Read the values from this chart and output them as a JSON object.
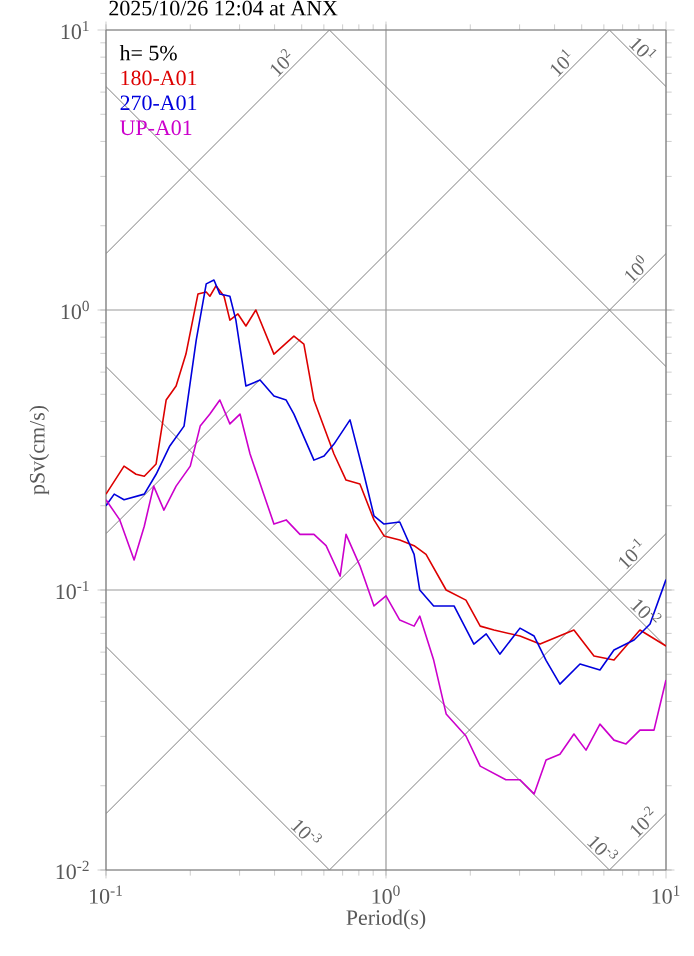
{
  "chart_data": {
    "type": "line",
    "title": "2025/10/26 12:04 at ANX",
    "xlabel": "Period(s)",
    "ylabel": "pSv(cm/s)",
    "log": "xy",
    "grid": true,
    "legend": "top left",
    "xlim": [
      0.1,
      10
    ],
    "ylim": [
      0.01,
      10
    ],
    "xticks": [
      {
        "value": 0.1,
        "label": "10$^{-1}$"
      },
      {
        "value": 1,
        "label": "10$^{0}$"
      },
      {
        "value": 10,
        "label": "10$^{1}$"
      }
    ],
    "yticks": [
      {
        "value": 0.01,
        "label": "10$^{-2}$"
      },
      {
        "value": 0.1,
        "label": "10$^{-1}$"
      },
      {
        "value": 1,
        "label": "10$^{0}$"
      },
      {
        "value": 10,
        "label": "10$^{1}$"
      }
    ],
    "annotations": [
      "h= 5%",
      {
        "text": "10$^{2}$",
        "x": 0.45,
        "y": 7.2
      },
      {
        "text": "10$^{1}$",
        "x": 4.5,
        "y": 7.2
      },
      {
        "text": "10$^{1}$",
        "x": 7.8,
        "y": 8.05
      },
      {
        "text": "10$^{0}$",
        "x": 8.3,
        "y": 1.32
      },
      {
        "text": "10$^{-1}$",
        "x": 8.0,
        "y": 0.127
      },
      {
        "text": "10$^{-2}$",
        "x": 8.0,
        "y": 0.0785
      },
      {
        "text": "10$^{-2}$",
        "x": 8.8,
        "y": 0.014
      },
      {
        "text": "10$^{-3}$",
        "x": 5.6,
        "y": 0.0112
      },
      {
        "text": "10$^{-3}$",
        "x": 0.49,
        "y": 0.0128
      }
    ],
    "series": [
      {
        "color": "#808080",
        "x": [
          0.1,
          0.628
        ],
        "values": [
          1.59,
          10
        ]
      },
      {
        "color": "#808080",
        "x": [
          0.1,
          6.28
        ],
        "values": [
          0.159,
          10
        ]
      },
      {
        "color": "#808080",
        "x": [
          0.1,
          10
        ],
        "values": [
          0.0159,
          1.59
        ]
      },
      {
        "color": "#808080",
        "x": [
          0.628,
          10
        ],
        "values": [
          0.01,
          0.159
        ]
      },
      {
        "color": "#808080",
        "x": [
          6.28,
          10
        ],
        "values": [
          0.01,
          0.0159
        ]
      },
      {
        "color": "#808080",
        "x": [
          6.28,
          10
        ],
        "values": [
          10,
          6.28
        ]
      },
      {
        "color": "#808080",
        "x": [
          0.628,
          10
        ],
        "values": [
          10,
          0.628
        ]
      },
      {
        "color": "#808080",
        "x": [
          0.1,
          10
        ],
        "values": [
          6.28,
          0.0628
        ]
      },
      {
        "color": "#808080",
        "x": [
          0.1,
          6.28
        ],
        "values": [
          0.628,
          0.01
        ]
      },
      {
        "color": "#808080",
        "x": [
          0.1,
          0.628
        ],
        "values": [
          0.0628,
          0.01
        ]
      },
      {
        "name": "180-A01",
        "color": "#dd0000",
        "x": [
          0.1,
          0.116,
          0.128,
          0.137,
          0.151,
          0.164,
          0.178,
          0.193,
          0.213,
          0.228,
          0.235,
          0.247,
          0.264,
          0.277,
          0.296,
          0.316,
          0.343,
          0.398,
          0.469,
          0.509,
          0.553,
          0.652,
          0.72,
          0.807,
          0.906,
          0.984,
          1.12,
          1.26,
          1.39,
          1.64,
          1.93,
          2.17,
          2.43,
          3.01,
          3.55,
          4.69,
          5.53,
          6.52,
          8.07,
          10
        ],
        "values": [
          0.22,
          0.277,
          0.259,
          0.255,
          0.282,
          0.477,
          0.535,
          0.696,
          1.14,
          1.16,
          1.12,
          1.22,
          1.12,
          0.92,
          0.968,
          0.877,
          1.0,
          0.696,
          0.807,
          0.756,
          0.477,
          0.306,
          0.247,
          0.239,
          0.178,
          0.156,
          0.151,
          0.144,
          0.134,
          0.1,
          0.092,
          0.0743,
          0.072,
          0.0685,
          0.0641,
          0.072,
          0.0581,
          0.0562,
          0.072,
          0.0631
        ]
      },
      {
        "name": "270-A01",
        "color": "#0000dd",
        "x": [
          0.1,
          0.107,
          0.116,
          0.137,
          0.151,
          0.169,
          0.19,
          0.21,
          0.228,
          0.243,
          0.255,
          0.277,
          0.291,
          0.316,
          0.355,
          0.398,
          0.44,
          0.469,
          0.553,
          0.601,
          0.652,
          0.744,
          0.834,
          0.906,
          0.984,
          1.12,
          1.26,
          1.32,
          1.48,
          1.75,
          2.06,
          2.28,
          2.55,
          3.01,
          3.38,
          3.73,
          4.18,
          4.93,
          5.81,
          6.52,
          7.69,
          8.77,
          10
        ],
        "values": [
          0.2,
          0.22,
          0.21,
          0.22,
          0.259,
          0.327,
          0.385,
          0.781,
          1.24,
          1.28,
          1.14,
          1.12,
          0.92,
          0.535,
          0.562,
          0.493,
          0.477,
          0.425,
          0.291,
          0.301,
          0.332,
          0.405,
          0.259,
          0.184,
          0.172,
          0.175,
          0.134,
          0.1,
          0.0877,
          0.0877,
          0.0641,
          0.0697,
          0.059,
          0.0731,
          0.0685,
          0.0561,
          0.0461,
          0.0544,
          0.0518,
          0.0611,
          0.0663,
          0.0756,
          0.109
        ]
      },
      {
        "name": "UP-A01",
        "color": "#cc00cc",
        "x": [
          0.1,
          0.112,
          0.126,
          0.137,
          0.148,
          0.161,
          0.178,
          0.2,
          0.217,
          0.235,
          0.255,
          0.277,
          0.301,
          0.327,
          0.366,
          0.398,
          0.44,
          0.493,
          0.553,
          0.611,
          0.686,
          0.72,
          0.807,
          0.906,
          1.0,
          1.12,
          1.26,
          1.32,
          1.48,
          1.64,
          1.93,
          2.17,
          2.68,
          3.01,
          3.38,
          3.73,
          4.18,
          4.69,
          5.18,
          5.81,
          6.52,
          7.2,
          8.07,
          9.06,
          10
        ],
        "values": [
          0.21,
          0.178,
          0.128,
          0.169,
          0.235,
          0.193,
          0.235,
          0.277,
          0.385,
          0.425,
          0.477,
          0.392,
          0.425,
          0.306,
          0.22,
          0.172,
          0.178,
          0.158,
          0.158,
          0.144,
          0.112,
          0.158,
          0.122,
          0.0877,
          0.0953,
          0.0781,
          0.0743,
          0.0807,
          0.0562,
          0.0361,
          0.0301,
          0.0235,
          0.021,
          0.021,
          0.0187,
          0.0247,
          0.0259,
          0.0306,
          0.0268,
          0.0332,
          0.0291,
          0.0282,
          0.0316,
          0.0316,
          0.0477
        ]
      }
    ]
  }
}
